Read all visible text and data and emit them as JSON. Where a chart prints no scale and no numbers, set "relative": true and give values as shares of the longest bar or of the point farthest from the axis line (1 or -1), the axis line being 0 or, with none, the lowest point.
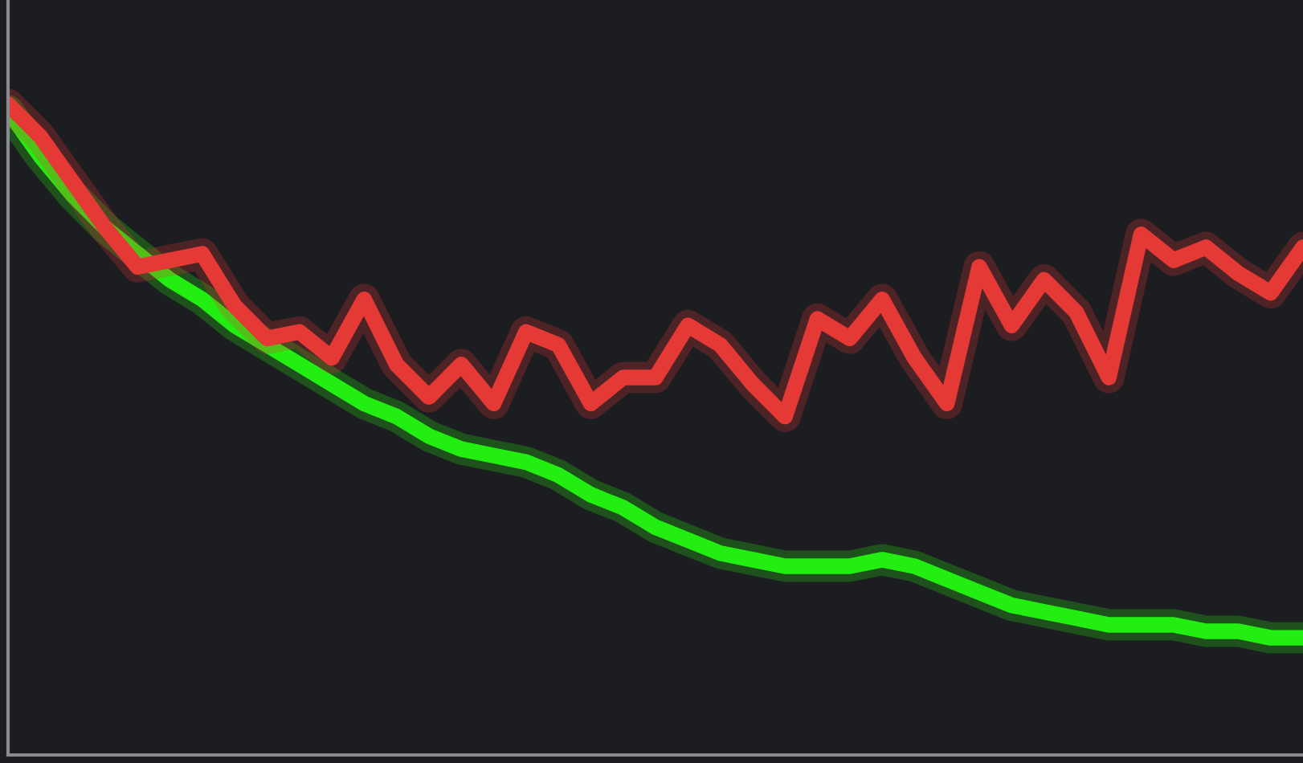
{
  "chart_data": {
    "type": "line",
    "relative": true,
    "grid": false,
    "legend": false,
    "marker": "none",
    "line_style": "solid",
    "categories": [
      null,
      null,
      null,
      null,
      null,
      null,
      null,
      null,
      null,
      null,
      null,
      null,
      null,
      null,
      null,
      null,
      null,
      null,
      null,
      null,
      null,
      null,
      null,
      null,
      null,
      null,
      null,
      null,
      null,
      null,
      null,
      null,
      null,
      null,
      null,
      null,
      null,
      null,
      null,
      null,
      null
    ],
    "series": [
      {
        "color": "#22ee11",
        "values": [
          0.99,
          0.92,
          0.86,
          0.81,
          0.77,
          0.73,
          0.7,
          0.66,
          0.63,
          0.6,
          0.57,
          0.54,
          0.52,
          0.49,
          0.47,
          0.46,
          0.45,
          0.43,
          0.4,
          0.38,
          0.35,
          0.33,
          0.31,
          0.3,
          0.29,
          0.29,
          0.29,
          0.3,
          0.29,
          0.27,
          0.25,
          0.23,
          0.22,
          0.21,
          0.2,
          0.2,
          0.2,
          0.19,
          0.19,
          0.18,
          0.18
        ]
      },
      {
        "color": "#e53935",
        "values": [
          1.0,
          0.95,
          0.88,
          0.81,
          0.75,
          0.76,
          0.77,
          0.69,
          0.64,
          0.65,
          0.61,
          0.7,
          0.6,
          0.55,
          0.6,
          0.54,
          0.65,
          0.63,
          0.54,
          0.58,
          0.58,
          0.66,
          0.63,
          0.57,
          0.52,
          0.67,
          0.64,
          0.7,
          0.61,
          0.54,
          0.75,
          0.66,
          0.73,
          0.68,
          0.58,
          0.8,
          0.76,
          0.78,
          0.74,
          0.71,
          0.78
        ]
      }
    ]
  }
}
